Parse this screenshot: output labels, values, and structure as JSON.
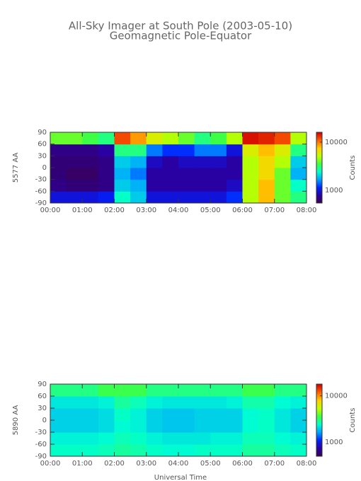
{
  "chart_data": [
    {
      "type": "heatmap",
      "title": "All-Sky Imager at South Pole (2003-05-10)",
      "subtitle": "Geomagnetic Pole-Equator",
      "ylabel": "5577 AA",
      "colorbar_label": "Counts",
      "xbins": [
        0,
        0.5,
        1,
        1.5,
        2,
        2.5,
        3,
        3.5,
        4,
        4.5,
        5,
        5.5,
        6,
        6.5,
        7,
        7.5,
        8
      ],
      "ybins": [
        -90,
        -60,
        -30,
        0,
        30,
        60,
        90
      ],
      "z": [
        [
          1000,
          1000,
          1000,
          1100,
          2500,
          2000,
          1000,
          1000,
          1000,
          1000,
          1000,
          1200,
          5000,
          8000,
          4000,
          3000
        ],
        [
          700,
          650,
          650,
          700,
          2000,
          1800,
          800,
          800,
          800,
          800,
          800,
          900,
          5000,
          8000,
          4000,
          2500
        ],
        [
          650,
          600,
          600,
          700,
          1800,
          1500,
          800,
          800,
          800,
          800,
          800,
          800,
          5000,
          7000,
          4000,
          1800
        ],
        [
          650,
          650,
          650,
          700,
          2000,
          1800,
          900,
          800,
          900,
          900,
          900,
          800,
          5000,
          7000,
          5000,
          2000
        ],
        [
          700,
          700,
          700,
          800,
          3000,
          3000,
          1500,
          1200,
          1200,
          1500,
          1500,
          1000,
          6000,
          8000,
          6000,
          3000
        ],
        [
          4000,
          4000,
          3500,
          3000,
          12000,
          9000,
          6000,
          5000,
          4000,
          3000,
          3500,
          5000,
          15000,
          14000,
          12000,
          5000
        ]
      ],
      "xlim": [
        0,
        8
      ],
      "xticks": [
        {
          "value": 0,
          "label": "00:00"
        },
        {
          "value": 1,
          "label": "01:00"
        },
        {
          "value": 2,
          "label": "02:00"
        },
        {
          "value": 3,
          "label": "03:00"
        },
        {
          "value": 4,
          "label": "04:00"
        },
        {
          "value": 5,
          "label": "05:00"
        },
        {
          "value": 6,
          "label": "06:00"
        },
        {
          "value": 7,
          "label": "07:00"
        },
        {
          "value": 8,
          "label": "08:00"
        }
      ],
      "ylim": [
        -90,
        90
      ],
      "yticks": [
        -90,
        -60,
        -30,
        0,
        30,
        60,
        90
      ],
      "clim": [
        543,
        16000
      ],
      "cticks": [
        1000,
        10000
      ],
      "color_scale": "log",
      "colormap": [
        "#3a0050",
        "#2a00a0",
        "#0020ff",
        "#00a0ff",
        "#00ffd0",
        "#40ff40",
        "#c0ff00",
        "#ffd000",
        "#ff6000",
        "#d00000"
      ]
    },
    {
      "type": "heatmap",
      "ylabel": "5890 AA",
      "colorbar_label": "Counts",
      "xlabel": "Universal Time",
      "xbins": [
        0,
        0.5,
        1,
        1.5,
        2,
        2.5,
        3,
        3.5,
        4,
        4.5,
        5,
        5.5,
        6,
        6.5,
        7,
        7.5,
        8
      ],
      "ybins": [
        -90,
        -60,
        -30,
        0,
        30,
        60,
        90
      ],
      "z": [
        [
          2500,
          2500,
          2500,
          2600,
          2800,
          2700,
          2500,
          2400,
          2400,
          2500,
          2500,
          2500,
          2800,
          2800,
          2600,
          2500
        ],
        [
          2300,
          2300,
          2300,
          2400,
          2600,
          2500,
          2300,
          2200,
          2200,
          2200,
          2300,
          2300,
          2600,
          2600,
          2400,
          2300
        ],
        [
          2000,
          2000,
          2000,
          2100,
          2400,
          2300,
          2000,
          1900,
          1900,
          2000,
          2000,
          2000,
          2400,
          2500,
          2200,
          2000
        ],
        [
          2000,
          2000,
          2000,
          2100,
          2500,
          2300,
          2000,
          1900,
          1900,
          2000,
          2000,
          2000,
          2400,
          2500,
          2200,
          2000
        ],
        [
          2200,
          2200,
          2200,
          2300,
          2800,
          2600,
          2300,
          2200,
          2200,
          2200,
          2200,
          2300,
          2700,
          2700,
          2400,
          2300
        ],
        [
          3000,
          3000,
          3000,
          3500,
          3500,
          3500,
          3000,
          3000,
          3000,
          3000,
          3000,
          3000,
          3500,
          3500,
          3000,
          3000
        ]
      ],
      "xlim": [
        0,
        8
      ],
      "xticks": [
        {
          "value": 0,
          "label": "00:00"
        },
        {
          "value": 1,
          "label": "01:00"
        },
        {
          "value": 2,
          "label": "02:00"
        },
        {
          "value": 3,
          "label": "03:00"
        },
        {
          "value": 4,
          "label": "04:00"
        },
        {
          "value": 5,
          "label": "05:00"
        },
        {
          "value": 6,
          "label": "06:00"
        },
        {
          "value": 7,
          "label": "07:00"
        },
        {
          "value": 8,
          "label": "08:00"
        }
      ],
      "ylim": [
        -90,
        90
      ],
      "yticks": [
        -90,
        -60,
        -30,
        0,
        30,
        60,
        90
      ],
      "clim": [
        490,
        18000
      ],
      "cticks": [
        1000,
        10000
      ],
      "color_scale": "log",
      "colormap": [
        "#3a0050",
        "#2a00a0",
        "#0020ff",
        "#00a0ff",
        "#00ffd0",
        "#40ff40",
        "#c0ff00",
        "#ffd000",
        "#ff6000",
        "#d00000"
      ]
    }
  ]
}
